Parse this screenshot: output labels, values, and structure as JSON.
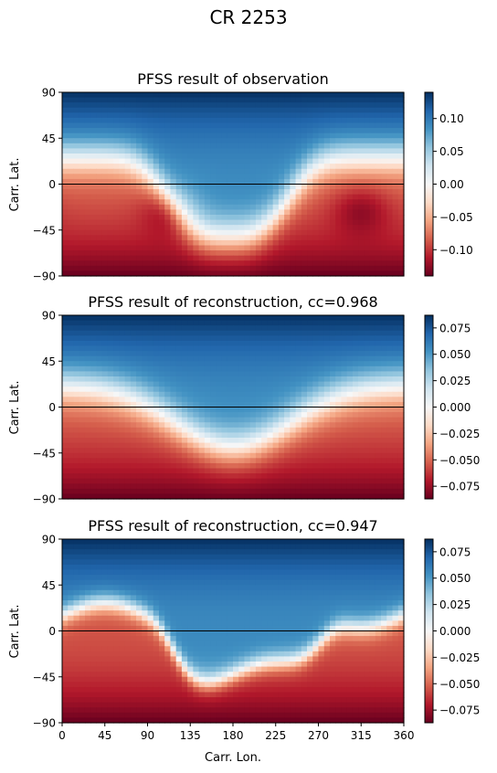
{
  "figure": {
    "suptitle": "CR 2253"
  },
  "chart_data": [
    {
      "type": "heatmap",
      "title": "PFSS result of observation",
      "xlabel": "",
      "ylabel": "Carr. Lat.",
      "xlim": [
        0,
        360
      ],
      "ylim": [
        -90,
        90
      ],
      "y_ticks": [
        90,
        45,
        0,
        -45,
        -90
      ],
      "x_ticks": [],
      "colormap": "RdBu",
      "equator_line": 0,
      "colorbar": {
        "vmin": -0.14,
        "vmax": 0.14,
        "ticks": [
          0.1,
          0.05,
          0.0,
          -0.05,
          -0.1
        ]
      },
      "field": {
        "polar_amplitude": 0.14,
        "boundary_offset": 25,
        "dip_center": 175,
        "dip_width": 72,
        "dip_depth": 78,
        "dip_sharpness": 6,
        "shoulder_amplitude": 0,
        "blob_centers": [
          115,
          315
        ]
      }
    },
    {
      "type": "heatmap",
      "title": "PFSS result of reconstruction, cc=0.968",
      "xlabel": "",
      "ylabel": "Carr. Lat.",
      "xlim": [
        0,
        360
      ],
      "ylim": [
        -90,
        90
      ],
      "y_ticks": [
        90,
        45,
        0,
        -45,
        -90
      ],
      "x_ticks": [],
      "colormap": "RdBu",
      "equator_line": 0,
      "colorbar": {
        "vmin": -0.087,
        "vmax": 0.087,
        "ticks": [
          0.075,
          0.05,
          0.025,
          0.0,
          -0.025,
          -0.05,
          -0.075
        ]
      },
      "field": {
        "polar_amplitude": 0.087,
        "boundary_offset": 20,
        "dip_center": 180,
        "dip_width": 85,
        "dip_depth": 60,
        "dip_sharpness": 4,
        "shoulder_amplitude": 0,
        "blob_centers": []
      }
    },
    {
      "type": "heatmap",
      "title": "PFSS result of reconstruction, cc=0.947",
      "xlabel": "Carr. Lon.",
      "ylabel": "Carr. Lat.",
      "xlim": [
        0,
        360
      ],
      "ylim": [
        -90,
        90
      ],
      "y_ticks": [
        90,
        45,
        0,
        -45,
        -90
      ],
      "x_ticks": [
        0,
        45,
        90,
        135,
        180,
        225,
        270,
        315,
        360
      ],
      "colormap": "RdBu",
      "equator_line": 0,
      "colorbar": {
        "vmin": -0.087,
        "vmax": 0.087,
        "ticks": [
          0.075,
          0.05,
          0.025,
          0.0,
          -0.025,
          -0.05,
          -0.075
        ]
      },
      "field": {
        "polar_amplitude": 0.087,
        "boundary_offset": 15,
        "dip_center": 195,
        "dip_width": 80,
        "dip_depth": 58,
        "dip_sharpness": 10,
        "shoulder_amplitude": 12,
        "blob_centers": []
      }
    }
  ]
}
